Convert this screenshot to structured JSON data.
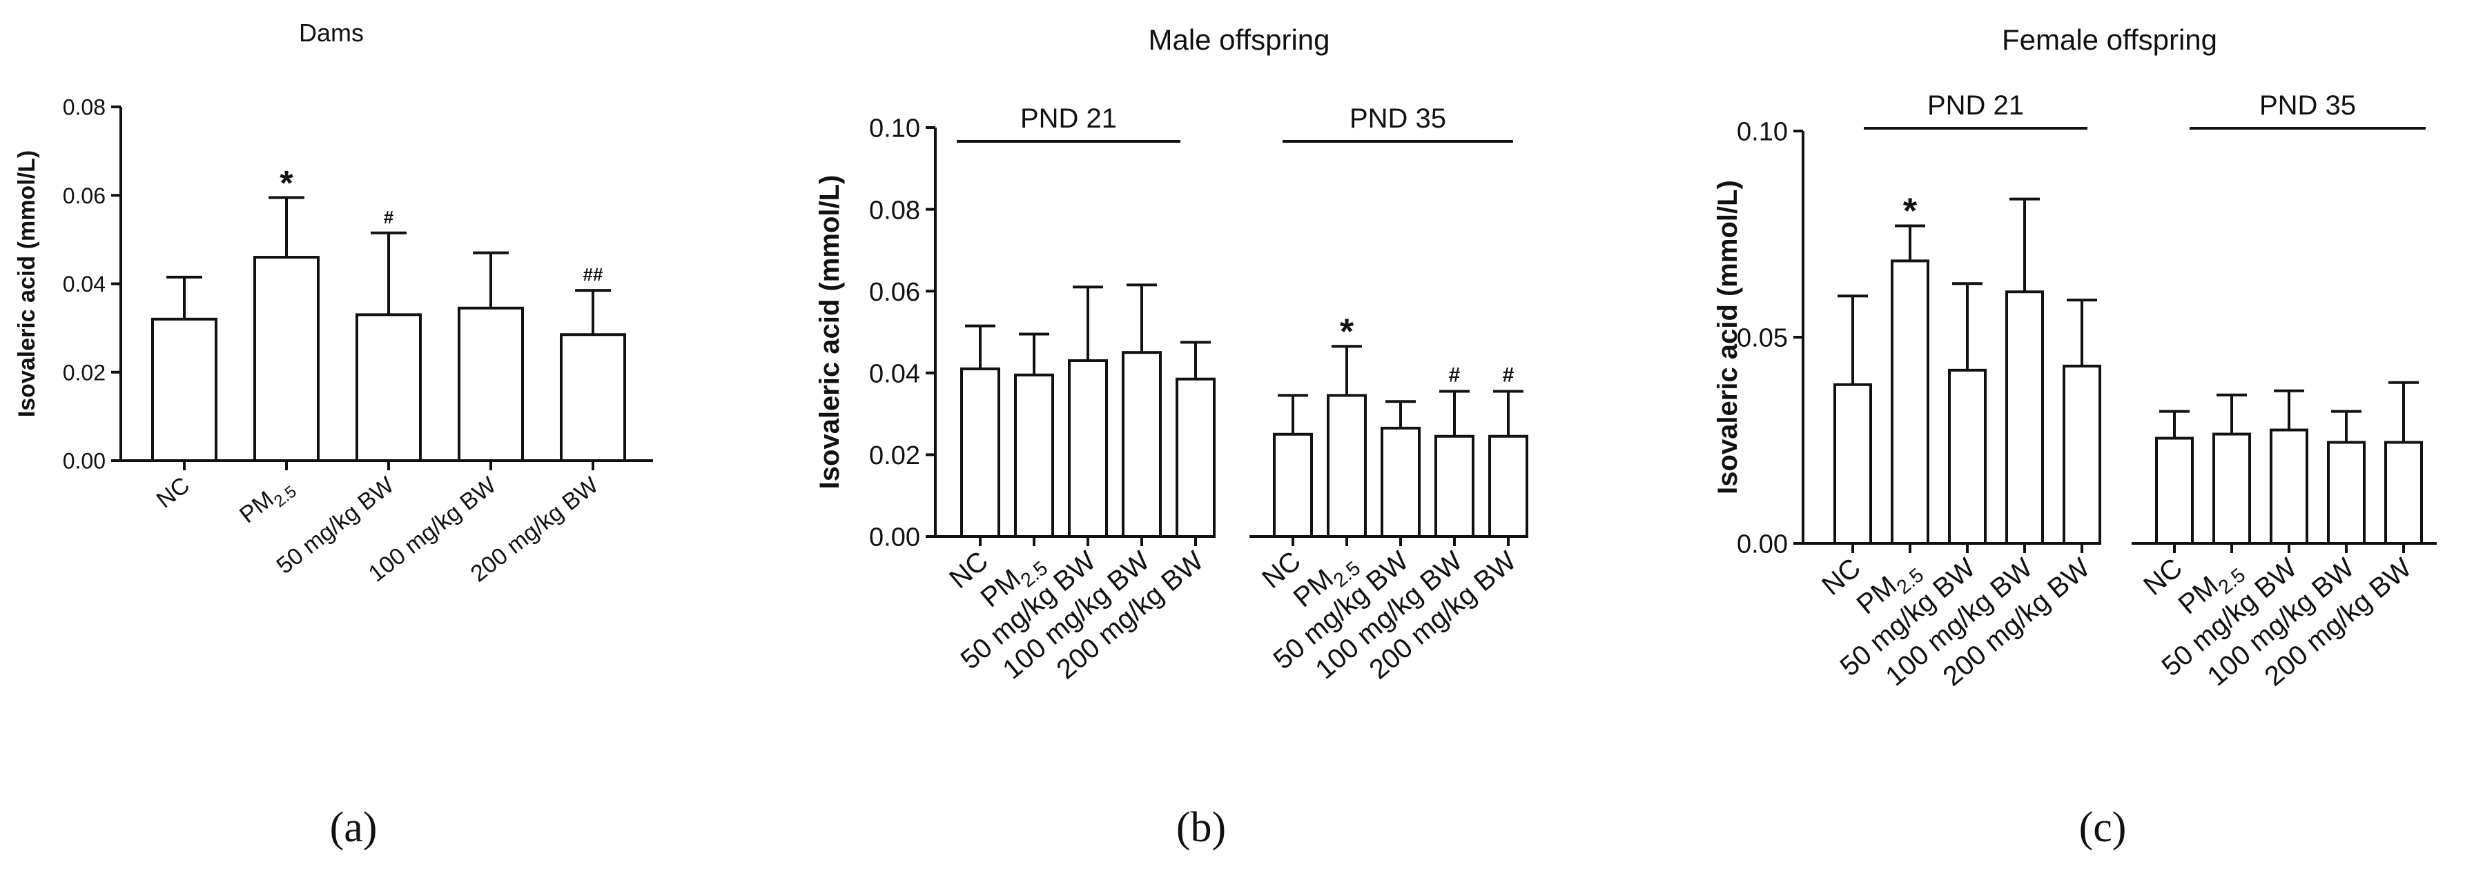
{
  "chart_data": [
    {
      "type": "bar",
      "panel_label": "(a)",
      "title": "Dams",
      "ylabel": "Isovaleric acid (mmol/L)",
      "ylim": [
        0,
        0.08
      ],
      "yticks": [
        "0.00",
        "0.02",
        "0.04",
        "0.06",
        "0.08"
      ],
      "categories": [
        "NC",
        "PM2.5",
        "50 mg/kg BW",
        "100 mg/kg BW",
        "200 mg/kg BW"
      ],
      "values": [
        0.032,
        0.046,
        0.033,
        0.0345,
        0.0285
      ],
      "errors": [
        0.0095,
        0.0135,
        0.0185,
        0.0125,
        0.01
      ],
      "annotations": [
        "",
        "*",
        "#",
        "",
        "##"
      ]
    },
    {
      "type": "bar",
      "panel_label": "(b)",
      "title": "Male offspring",
      "ylabel": "Isovaleric acid  (mmol/L)",
      "ylim": [
        0,
        0.1
      ],
      "yticks": [
        "0.00",
        "0.02",
        "0.04",
        "0.06",
        "0.08",
        "0.10"
      ],
      "groups": [
        {
          "name": "PND 21",
          "categories": [
            "NC",
            "PM2.5",
            "50 mg/kg BW",
            "100 mg/kg BW",
            "200 mg/kg BW"
          ],
          "values": [
            0.041,
            0.0395,
            0.043,
            0.045,
            0.0385
          ],
          "errors": [
            0.0105,
            0.01,
            0.018,
            0.0165,
            0.009
          ],
          "annotations": [
            "",
            "",
            "",
            "",
            ""
          ]
        },
        {
          "name": "PND 35",
          "categories": [
            "NC",
            "PM2.5",
            "50 mg/kg BW",
            "100 mg/kg  BW",
            "200 mg/kg BW"
          ],
          "values": [
            0.025,
            0.0345,
            0.0265,
            0.0245,
            0.0245
          ],
          "errors": [
            0.0095,
            0.012,
            0.0065,
            0.011,
            0.011
          ],
          "annotations": [
            "",
            "*",
            "",
            "#",
            "#"
          ]
        }
      ]
    },
    {
      "type": "bar",
      "panel_label": "(c)",
      "title": "Female offspring",
      "ylabel": "Isovaleric acid  (mmol/L)",
      "ylim": [
        0,
        0.1
      ],
      "yticks": [
        "0.00",
        "0.05",
        "0.10"
      ],
      "groups": [
        {
          "name": "PND 21",
          "categories": [
            "NC",
            "PM2.5",
            "50 mg/kg BW",
            "100 mg/kg BW",
            "200 mg/kg BW"
          ],
          "values": [
            0.0385,
            0.0685,
            0.042,
            0.061,
            0.043
          ],
          "errors": [
            0.0215,
            0.0085,
            0.021,
            0.0225,
            0.016
          ],
          "annotations": [
            "",
            "*",
            "",
            "",
            ""
          ]
        },
        {
          "name": "PND 35",
          "categories": [
            "NC",
            "PM2.5",
            "50 mg/kg BW",
            "100 mg/kg BW",
            "200 mg/kg BW"
          ],
          "values": [
            0.0255,
            0.0265,
            0.0275,
            0.0245,
            0.0245
          ],
          "errors": [
            0.0065,
            0.0095,
            0.0095,
            0.0075,
            0.0145
          ],
          "annotations": [
            "",
            "",
            "",
            "",
            ""
          ]
        }
      ]
    }
  ]
}
